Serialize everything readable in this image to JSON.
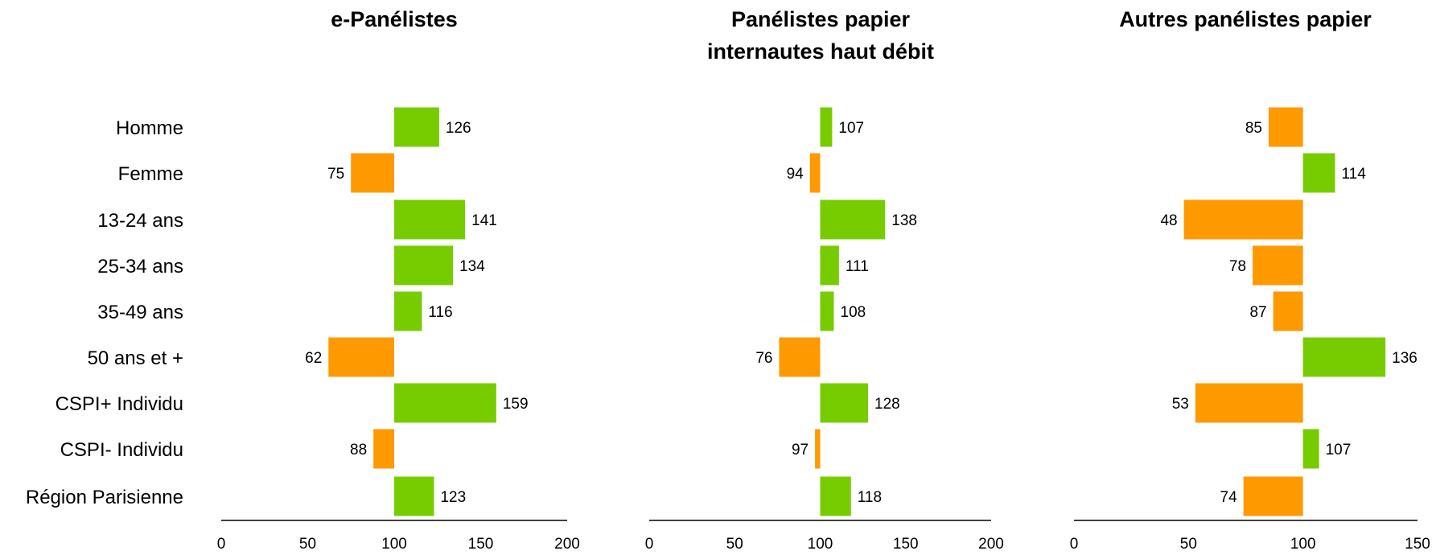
{
  "chart_data": {
    "type": "bar",
    "orientation": "horizontal",
    "baseline": 100,
    "categories": [
      "Homme",
      "Femme",
      "13-24 ans",
      "25-34 ans",
      "35-49 ans",
      "50 ans et +",
      "CSPI+ Individu",
      "CSPI- Individu",
      "Région Parisienne"
    ],
    "colors": {
      "above": "#77cc00",
      "below": "#ff9900",
      "axis": "#000000"
    },
    "panels": [
      {
        "title": [
          "e-Panélistes"
        ],
        "xlim": [
          0,
          200
        ],
        "xticks": [
          "0",
          "50",
          "100",
          "150",
          "200"
        ],
        "values": [
          126,
          75,
          141,
          134,
          116,
          62,
          159,
          88,
          123
        ]
      },
      {
        "title": [
          "Panélistes papier",
          "internautes haut débit"
        ],
        "xlim": [
          0,
          200
        ],
        "xticks": [
          "0",
          "50",
          "100",
          "150",
          "200"
        ],
        "values": [
          107,
          94,
          138,
          111,
          108,
          76,
          128,
          97,
          118
        ]
      },
      {
        "title": [
          "Autres panélistes papier"
        ],
        "xlim": [
          0,
          150
        ],
        "xticks": [
          "0",
          "50",
          "100",
          "150"
        ],
        "values": [
          85,
          114,
          48,
          78,
          87,
          136,
          53,
          107,
          74
        ]
      }
    ]
  }
}
